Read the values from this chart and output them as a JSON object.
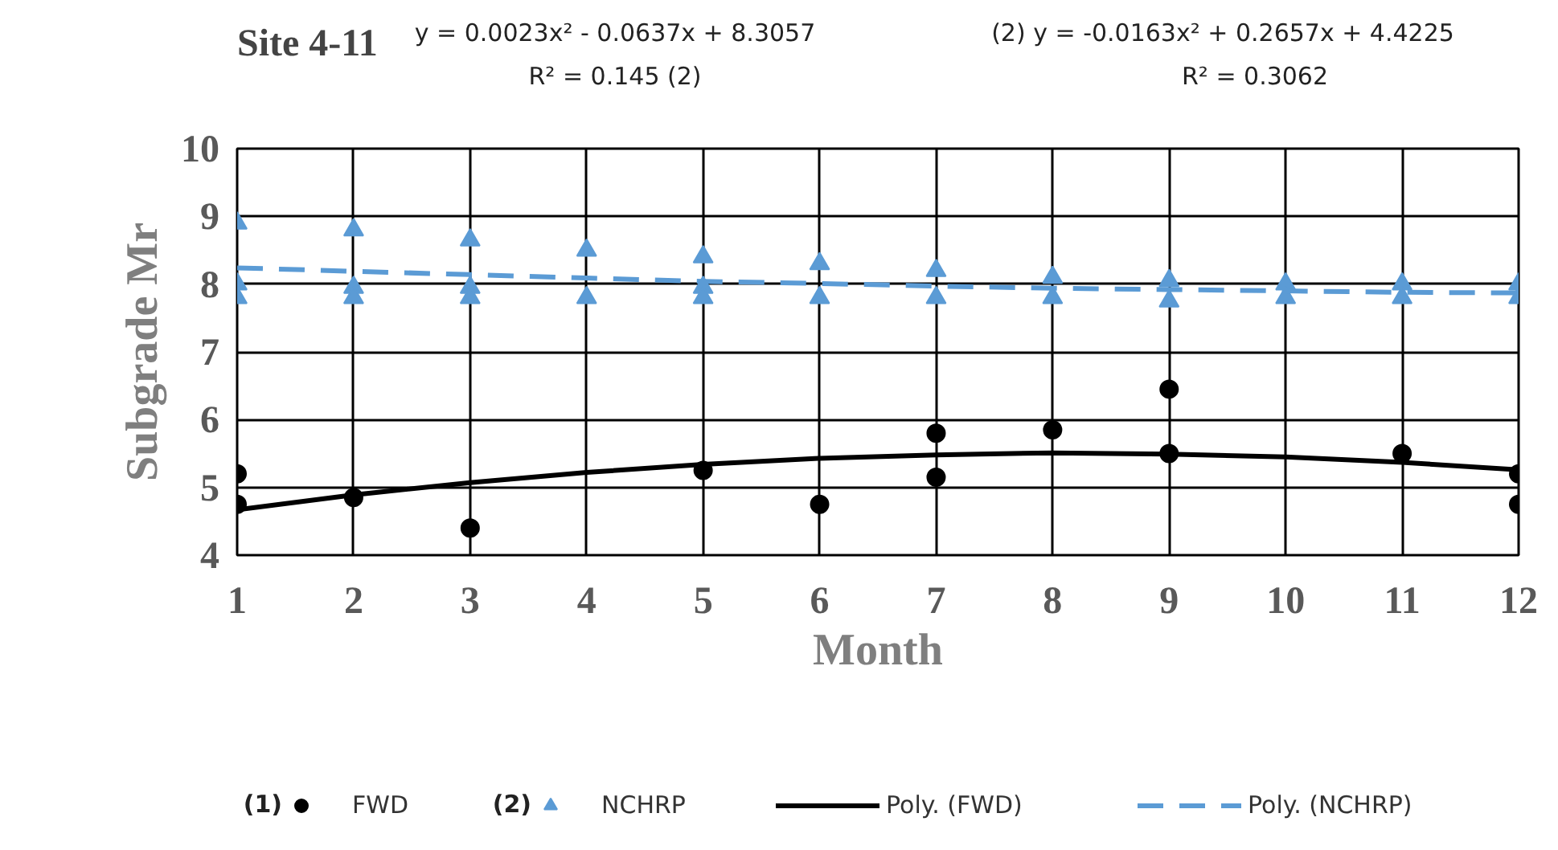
{
  "chart_data": {
    "type": "scatter",
    "title": "Site 4-11",
    "xlabel": "Month",
    "ylabel": "Subgrade Mr",
    "annotations": [
      "y = 0.0023x² - 0.0637x + 8.3057",
      "R² = 0.145 (2)",
      "(2) y = -0.0163x² + 0.2657x + 4.4225",
      "R² = 0.3062",
      "(1)",
      "(2)"
    ],
    "xlim": [
      1,
      12
    ],
    "xticks": [
      1,
      2,
      3,
      4,
      5,
      6,
      7,
      8,
      9,
      10,
      11,
      12
    ],
    "ylim": [
      4,
      10
    ],
    "yticks": [
      4,
      5,
      6,
      7,
      8,
      9,
      10
    ],
    "grid": true,
    "legend": "bottom",
    "series": [
      {
        "name": "FWD",
        "type": "scatter",
        "marker": "circle",
        "color": "#000000",
        "x": [
          1,
          1,
          2,
          3,
          5,
          6,
          7,
          7,
          8,
          9,
          9,
          11,
          12,
          12
        ],
        "values": [
          5.2,
          4.75,
          4.85,
          4.4,
          5.25,
          4.75,
          5.8,
          5.15,
          5.85,
          6.45,
          5.5,
          5.5,
          5.2,
          4.75
        ]
      },
      {
        "name": "NCHRP",
        "type": "scatter",
        "marker": "triangle",
        "color": "#5b9bd5",
        "x": [
          1,
          1,
          1,
          2,
          2,
          2,
          3,
          3,
          3,
          4,
          4,
          5,
          5,
          5,
          6,
          6,
          7,
          7,
          8,
          8,
          9,
          9,
          10,
          10,
          11,
          11,
          12,
          12
        ],
        "values": [
          8.9,
          8.0,
          7.8,
          8.8,
          7.95,
          7.8,
          8.65,
          7.95,
          7.8,
          8.5,
          7.8,
          8.4,
          7.95,
          7.8,
          8.3,
          7.8,
          8.2,
          7.8,
          8.1,
          7.8,
          8.05,
          7.75,
          8.0,
          7.8,
          8.0,
          7.8,
          8.0,
          7.8
        ]
      },
      {
        "name": "Poly. (FWD)",
        "type": "line",
        "line_style": "solid",
        "color": "#000000",
        "x": [
          1,
          2,
          3,
          4,
          5,
          6,
          7,
          8,
          9,
          10,
          11,
          12
        ],
        "values": [
          4.67,
          4.89,
          5.07,
          5.22,
          5.34,
          5.43,
          5.48,
          5.51,
          5.49,
          5.45,
          5.37,
          5.26
        ]
      },
      {
        "name": "Poly. (NCHRP)",
        "type": "line",
        "line_style": "dashed",
        "color": "#5b9bd5",
        "x": [
          1,
          2,
          3,
          4,
          5,
          6,
          7,
          8,
          9,
          10,
          11,
          12
        ],
        "values": [
          8.24,
          8.19,
          8.14,
          8.09,
          8.04,
          8.01,
          7.97,
          7.94,
          7.92,
          7.9,
          7.88,
          7.87
        ]
      }
    ]
  }
}
